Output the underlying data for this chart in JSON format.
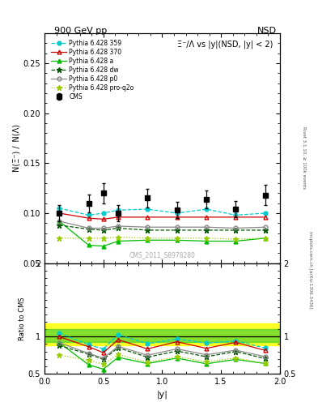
{
  "title_left": "900 GeV pp",
  "title_right": "NSD",
  "plot_title": "Ξ⁻/Λ vs |y|(NSD, |y| < 2)",
  "ylabel_main": "N(Ξ⁻) /  N(Λ)",
  "ylabel_ratio": "Ratio to CMS",
  "xlabel": "|y|",
  "watermark": "CMS_2011_S8978280",
  "rivet_text": "Rivet 3.1.10, ≥ 100k events",
  "mcplots_text": "mcplots.cern.ch [arXiv:1306.3436]",
  "x_cms": [
    0.125,
    0.375,
    0.5,
    0.625,
    0.875,
    1.125,
    1.375,
    1.625,
    1.875
  ],
  "y_cms": [
    0.1,
    0.11,
    0.12,
    0.1,
    0.115,
    0.103,
    0.114,
    0.104,
    0.118
  ],
  "y_cms_err": [
    0.008,
    0.009,
    0.01,
    0.008,
    0.009,
    0.008,
    0.009,
    0.008,
    0.01
  ],
  "x_mc": [
    0.125,
    0.375,
    0.5,
    0.625,
    0.875,
    1.125,
    1.375,
    1.625,
    1.875
  ],
  "y_359": [
    0.105,
    0.098,
    0.1,
    0.103,
    0.104,
    0.1,
    0.104,
    0.098,
    0.1
  ],
  "y_370": [
    0.1,
    0.095,
    0.094,
    0.096,
    0.096,
    0.096,
    0.096,
    0.096,
    0.096
  ],
  "y_a": [
    0.092,
    0.068,
    0.067,
    0.072,
    0.073,
    0.073,
    0.072,
    0.072,
    0.075
  ],
  "y_dw": [
    0.088,
    0.084,
    0.083,
    0.085,
    0.083,
    0.083,
    0.083,
    0.083,
    0.083
  ],
  "y_p0": [
    0.092,
    0.085,
    0.085,
    0.087,
    0.086,
    0.086,
    0.086,
    0.085,
    0.086
  ],
  "y_proq2o": [
    0.075,
    0.075,
    0.075,
    0.076,
    0.075,
    0.075,
    0.075,
    0.074,
    0.075
  ],
  "color_359": "#00cccc",
  "color_370": "#cc0000",
  "color_a": "#00bb00",
  "color_dw": "#005500",
  "color_p0": "#888888",
  "color_proq2o": "#99cc00",
  "band_yellow": [
    0.88,
    1.18
  ],
  "band_green": [
    0.93,
    1.1
  ],
  "ylim_main": [
    0.05,
    0.28
  ],
  "ylim_ratio": [
    0.5,
    2.0
  ],
  "xlim": [
    0.0,
    2.0
  ]
}
